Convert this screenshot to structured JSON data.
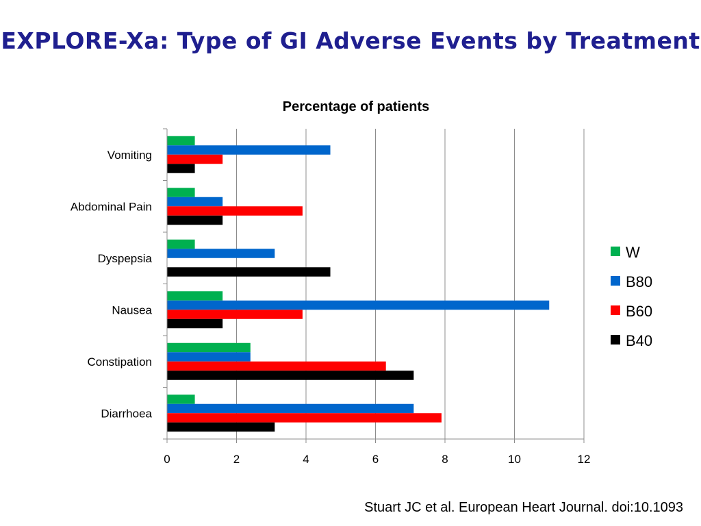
{
  "slide": {
    "title": "EXPLORE-Xa: Type of GI Adverse Events by Treatment",
    "citation": "Stuart JC et al. European Heart Journal. doi:10.1093"
  },
  "chart_data": {
    "type": "bar",
    "orientation": "horizontal",
    "title": "Percentage of patients",
    "xlabel": "",
    "ylabel": "",
    "categories": [
      "Vomiting",
      "Abdominal Pain",
      "Dyspepsia",
      "Nausea",
      "Constipation",
      "Diarrhoea"
    ],
    "xlim": [
      0,
      12
    ],
    "x_ticks": [
      0,
      2,
      4,
      6,
      8,
      10,
      12
    ],
    "grid": "vertical",
    "legend_position": "right",
    "series": [
      {
        "name": "W",
        "color": "#00b050",
        "values": [
          0.8,
          0.8,
          0.8,
          1.6,
          2.4,
          0.8
        ]
      },
      {
        "name": "B80",
        "color": "#0066cc",
        "values": [
          4.7,
          1.6,
          3.1,
          11.0,
          2.4,
          7.1
        ]
      },
      {
        "name": "B60",
        "color": "#ff0000",
        "values": [
          1.6,
          3.9,
          0,
          3.9,
          6.3,
          7.9
        ]
      },
      {
        "name": "B40",
        "color": "#000000",
        "values": [
          0.8,
          1.6,
          4.7,
          1.6,
          7.1,
          3.1
        ]
      }
    ]
  }
}
